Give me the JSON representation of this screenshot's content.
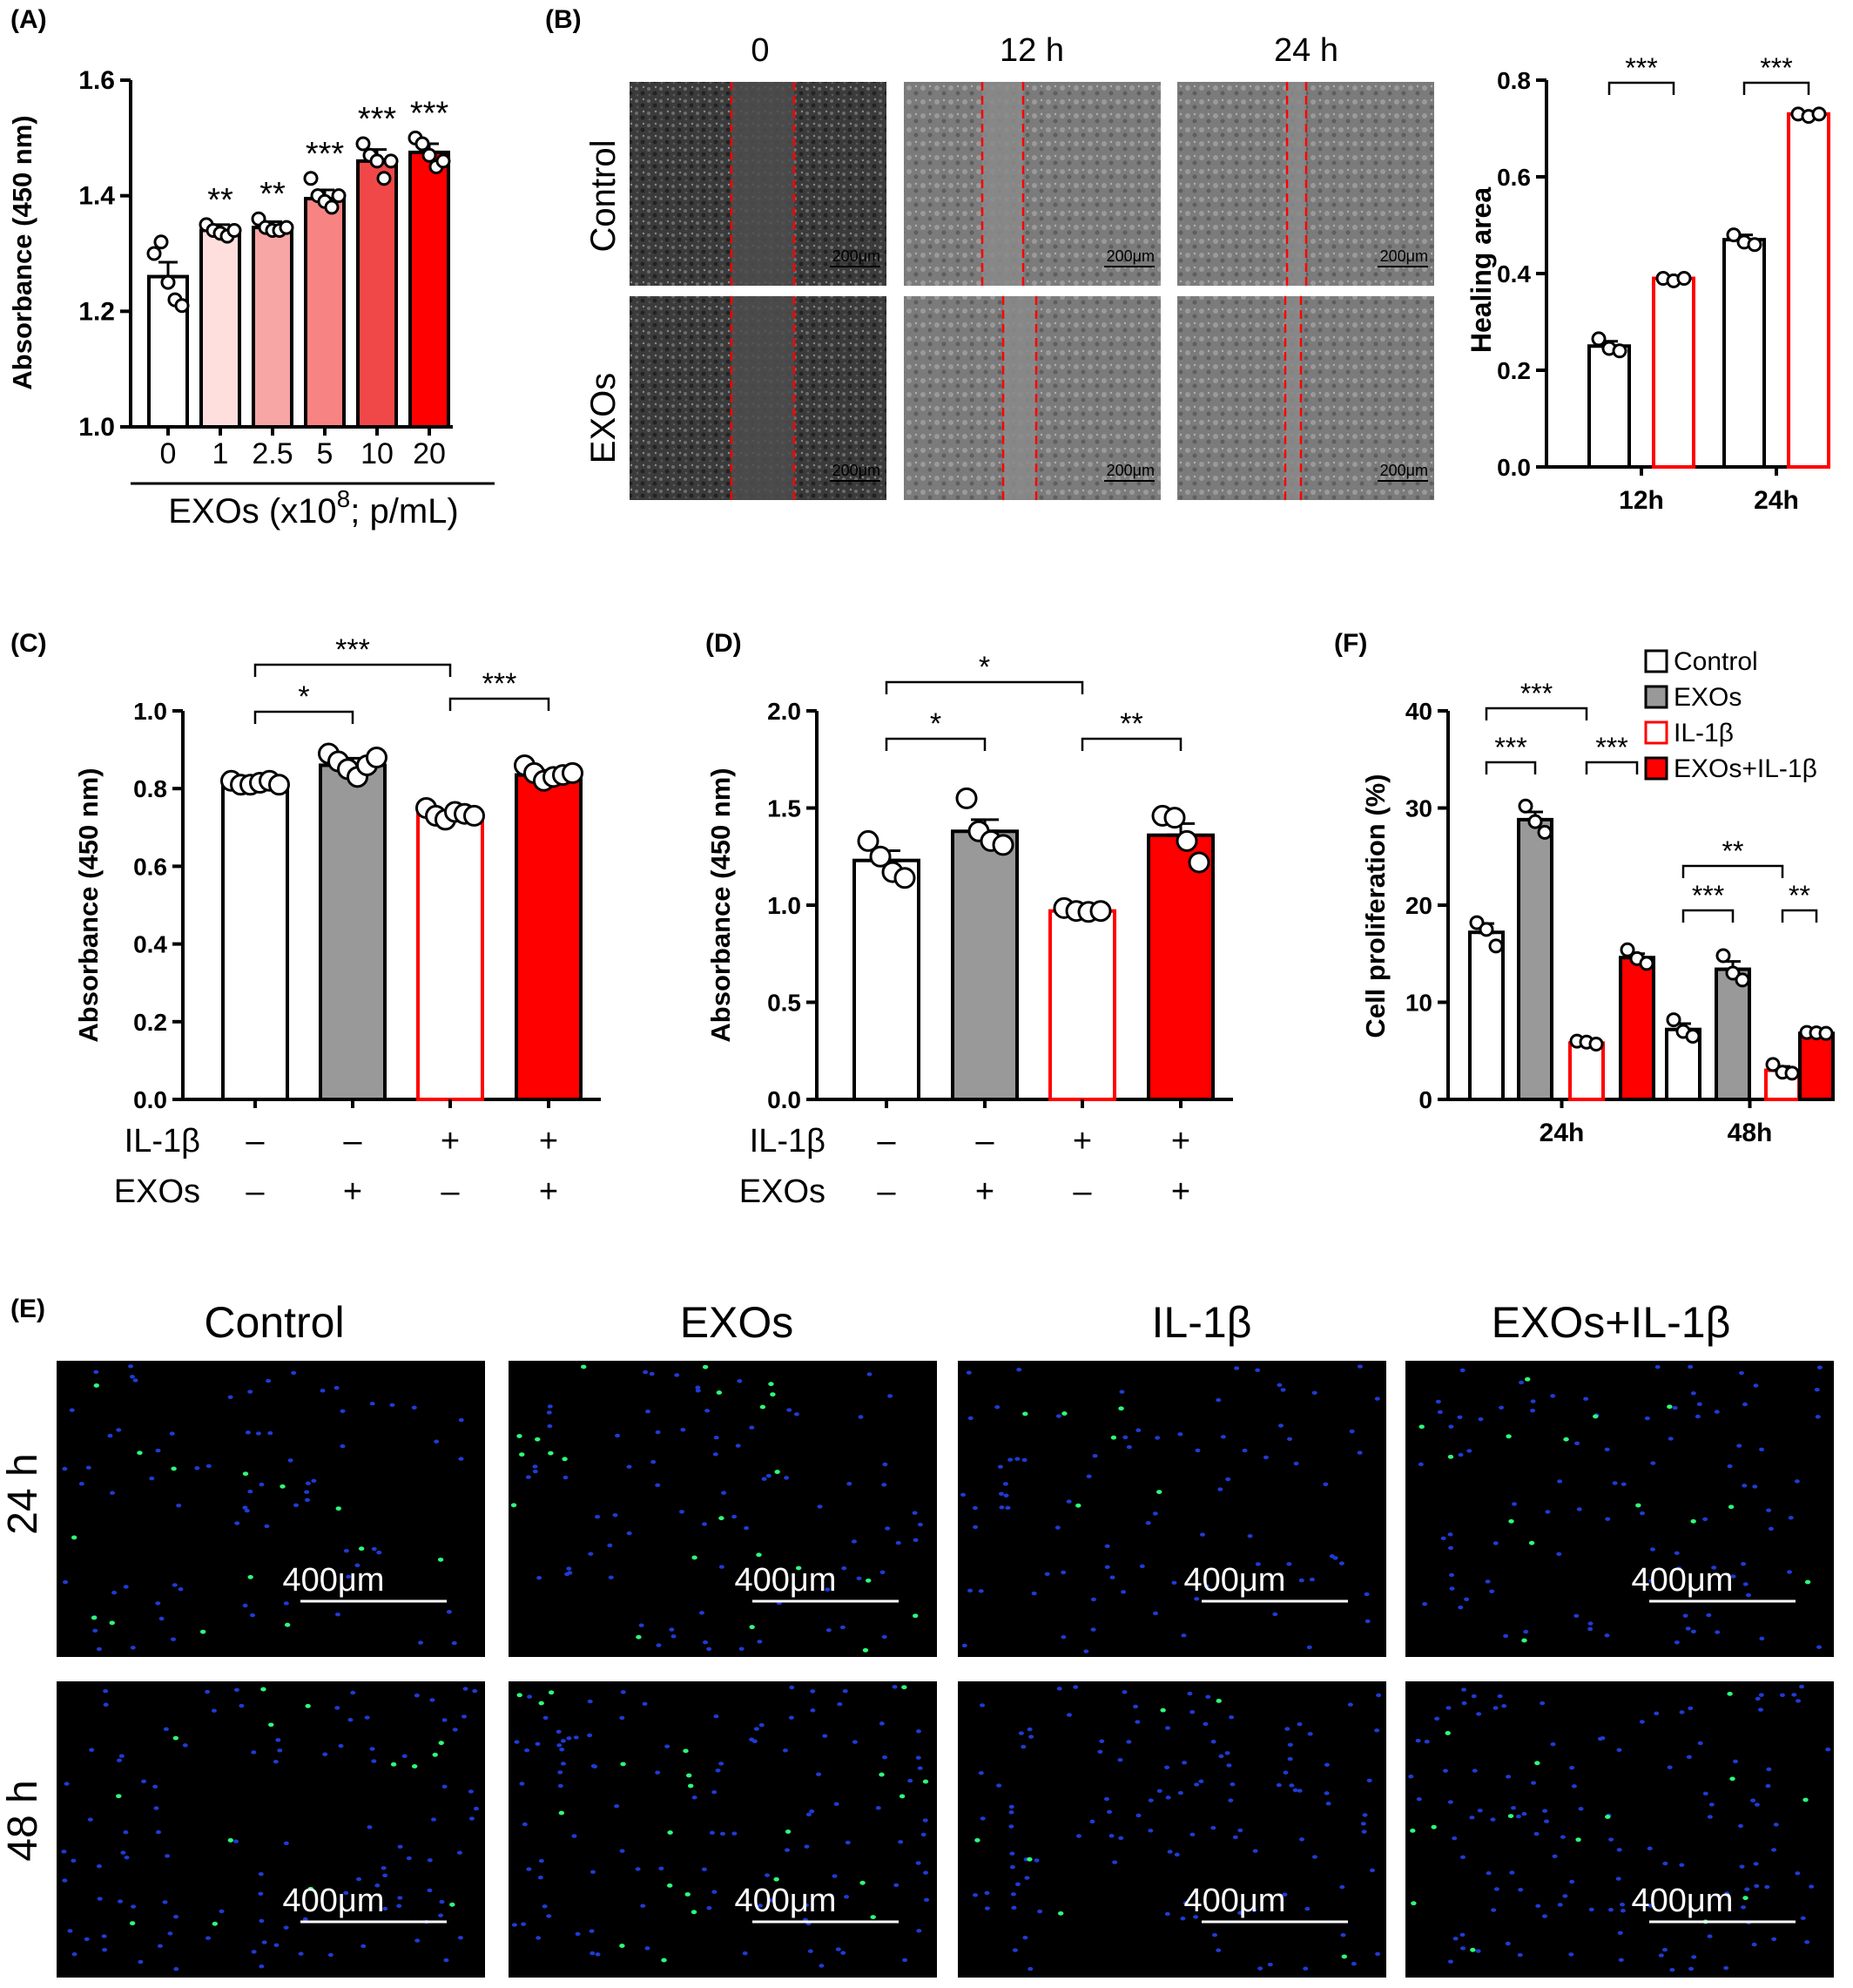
{
  "panel_labels": {
    "a": "(A)",
    "b": "(B)",
    "c": "(C)",
    "d": "(D)",
    "e": "(E)",
    "f": "(F)"
  },
  "panel_a": {
    "ylabel": "Absorbance (450 nm)",
    "yticks": [
      "1.0",
      "1.2",
      "1.4",
      "1.6"
    ],
    "categories": [
      "0",
      "1",
      "2.5",
      "5",
      "10",
      "20"
    ],
    "xlabel_main": "EXOs (x10",
    "xlabel_sup": "8",
    "xlabel_rest": "; p/mL)",
    "sig": [
      "",
      "**",
      "**",
      "***",
      "***",
      "***"
    ]
  },
  "panel_b": {
    "col_labels": [
      "0",
      "12 h",
      "24 h"
    ],
    "row_labels": [
      "Control",
      "EXOs"
    ],
    "scale_bar": "200μm",
    "ylabel": "Healing area",
    "yticks": [
      "0.0",
      "0.2",
      "0.4",
      "0.6",
      "0.8"
    ],
    "categories": [
      "12h",
      "24h"
    ],
    "sig": [
      "***",
      "***"
    ]
  },
  "panel_c": {
    "ylabel": "Absorbance (450 nm)",
    "yticks": [
      "0.0",
      "0.2",
      "0.4",
      "0.6",
      "0.8",
      "1.0"
    ],
    "row1_label": "IL-1β",
    "row2_label": "EXOs",
    "row1_signs": [
      "–",
      "–",
      "+",
      "+"
    ],
    "row2_signs": [
      "–",
      "+",
      "–",
      "+"
    ],
    "sig": {
      "top": "***",
      "a": "*",
      "b": "***"
    }
  },
  "panel_d": {
    "ylabel": "Absorbance (450 nm)",
    "yticks": [
      "0.0",
      "0.5",
      "1.0",
      "1.5",
      "2.0"
    ],
    "row1_label": "IL-1β",
    "row2_label": "EXOs",
    "row1_signs": [
      "–",
      "–",
      "+",
      "+"
    ],
    "row2_signs": [
      "–",
      "+",
      "–",
      "+"
    ],
    "sig": {
      "top": "*",
      "a": "*",
      "b": "**"
    }
  },
  "panel_e": {
    "col_labels": [
      "Control",
      "EXOs",
      "IL-1β",
      "EXOs+IL-1β"
    ],
    "row_labels": [
      "24 h",
      "48 h"
    ],
    "scale_bar": "400μm"
  },
  "panel_f": {
    "ylabel": "Cell proliferation (%)",
    "yticks": [
      "0",
      "10",
      "20",
      "30",
      "40"
    ],
    "categories": [
      "24h",
      "48h"
    ],
    "legend": [
      "Control",
      "EXOs",
      "IL-1β",
      "EXOs+IL-1β"
    ],
    "sig24": {
      "top": "***",
      "a": "***",
      "b": "***"
    },
    "sig48": {
      "top": "**",
      "a": "***",
      "b": "**"
    }
  },
  "colors": {
    "red": "#ff0000",
    "gray": "#999999",
    "a_bars": [
      "#ffffff",
      "#ffdede",
      "#f8a5a5",
      "#f78383",
      "#f04848",
      "#ff0000"
    ]
  },
  "chart_data": [
    {
      "type": "bar",
      "id": "A",
      "categories": [
        "0",
        "1",
        "2.5",
        "5",
        "10",
        "20"
      ],
      "values": [
        1.26,
        1.34,
        1.345,
        1.395,
        1.46,
        1.475
      ],
      "errors": [
        0.025,
        0.01,
        0.01,
        0.015,
        0.02,
        0.015
      ],
      "points": [
        [
          1.3,
          1.32,
          1.25,
          1.22,
          1.21
        ],
        [
          1.35,
          1.34,
          1.335,
          1.33,
          1.34
        ],
        [
          1.36,
          1.345,
          1.34,
          1.34,
          1.345
        ],
        [
          1.43,
          1.4,
          1.39,
          1.38,
          1.4
        ],
        [
          1.49,
          1.47,
          1.46,
          1.43,
          1.46
        ],
        [
          1.5,
          1.49,
          1.47,
          1.45,
          1.46
        ]
      ],
      "xlabel": "EXOs (x10^8; p/mL)",
      "ylabel": "Absorbance (450 nm)",
      "ylim": [
        1.0,
        1.6
      ]
    },
    {
      "type": "bar",
      "id": "B",
      "categories": [
        "12h",
        "24h"
      ],
      "series": [
        {
          "name": "Control",
          "values": [
            0.25,
            0.47
          ],
          "errors": [
            0.01,
            0.01
          ],
          "points": [
            [
              0.265,
              0.245,
              0.24
            ],
            [
              0.48,
              0.465,
              0.46
            ]
          ]
        },
        {
          "name": "EXOs",
          "values": [
            0.39,
            0.73
          ],
          "errors": [
            0.005,
            0.003
          ],
          "points": [
            [
              0.39,
              0.385,
              0.39
            ],
            [
              0.73,
              0.725,
              0.73
            ]
          ]
        }
      ],
      "ylabel": "Healing area",
      "ylim": [
        0.0,
        0.8
      ]
    },
    {
      "type": "bar",
      "id": "C",
      "categories": [
        "Control",
        "EXOs",
        "IL-1β",
        "EXOs+IL-1β"
      ],
      "values": [
        0.815,
        0.86,
        0.735,
        0.835
      ],
      "errors": [
        0.008,
        0.018,
        0.008,
        0.012
      ],
      "points": [
        [
          0.82,
          0.81,
          0.81,
          0.815,
          0.82,
          0.81
        ],
        [
          0.89,
          0.87,
          0.85,
          0.83,
          0.86,
          0.88
        ],
        [
          0.75,
          0.73,
          0.72,
          0.74,
          0.735,
          0.73
        ],
        [
          0.86,
          0.84,
          0.82,
          0.83,
          0.835,
          0.84
        ]
      ],
      "ylabel": "Absorbance (450 nm)",
      "ylim": [
        0.0,
        1.0
      ]
    },
    {
      "type": "bar",
      "id": "D",
      "categories": [
        "Control",
        "EXOs",
        "IL-1β",
        "EXOs+IL-1β"
      ],
      "values": [
        1.23,
        1.38,
        0.97,
        1.36
      ],
      "errors": [
        0.05,
        0.06,
        0.01,
        0.06
      ],
      "points": [
        [
          1.33,
          1.25,
          1.17,
          1.14
        ],
        [
          1.55,
          1.38,
          1.33,
          1.31
        ],
        [
          0.985,
          0.97,
          0.965,
          0.97
        ],
        [
          1.46,
          1.45,
          1.33,
          1.22
        ]
      ],
      "ylabel": "Absorbance (450 nm)",
      "ylim": [
        0.0,
        2.0
      ]
    },
    {
      "type": "bar",
      "id": "F",
      "categories": [
        "24h",
        "48h"
      ],
      "series": [
        {
          "name": "Control",
          "values": [
            17.2,
            7.2
          ],
          "errors": [
            0.9,
            0.6
          ],
          "points": [
            [
              18.2,
              17.5,
              15.8
            ],
            [
              8.2,
              7.0,
              6.5
            ]
          ]
        },
        {
          "name": "EXOs",
          "values": [
            28.8,
            13.4
          ],
          "errors": [
            0.8,
            0.8
          ],
          "points": [
            [
              30.2,
              28.6,
              27.5
            ],
            [
              14.8,
              13.0,
              12.3
            ]
          ]
        },
        {
          "name": "IL-1β",
          "values": [
            5.8,
            3.0
          ],
          "errors": [
            0.2,
            0.4
          ],
          "points": [
            [
              6.0,
              5.9,
              5.7
            ],
            [
              3.6,
              2.8,
              2.7
            ]
          ]
        },
        {
          "name": "EXOs+IL-1β",
          "values": [
            14.6,
            6.8
          ],
          "errors": [
            0.4,
            0.1
          ],
          "points": [
            [
              15.4,
              14.5,
              14.0
            ],
            [
              6.9,
              6.85,
              6.8
            ]
          ]
        }
      ],
      "ylabel": "Cell proliferation (%)",
      "ylim": [
        0,
        40
      ]
    }
  ]
}
